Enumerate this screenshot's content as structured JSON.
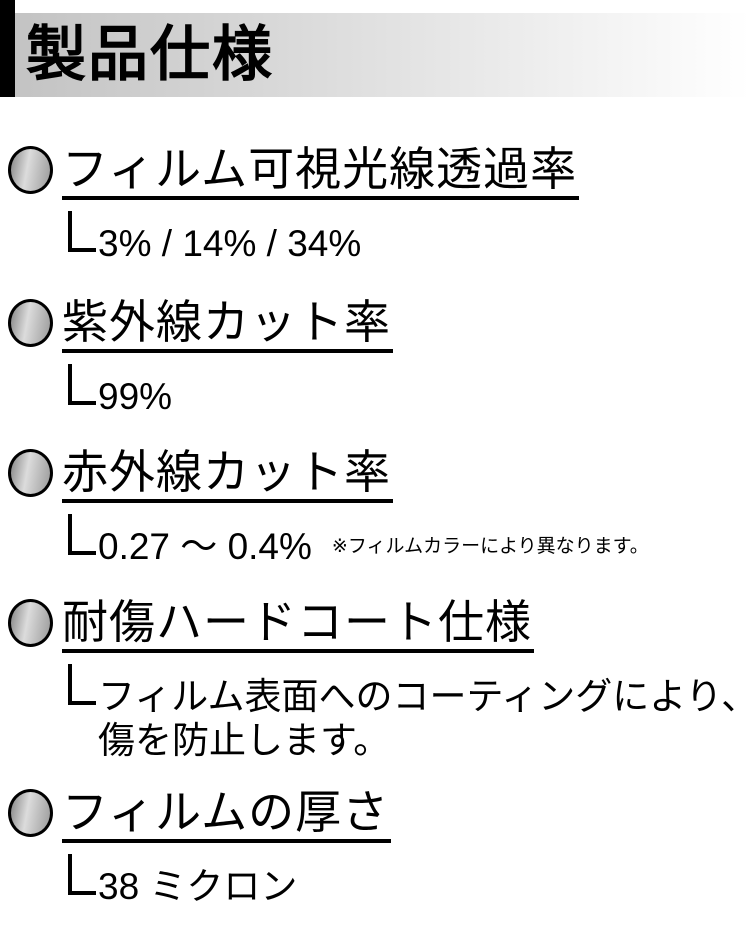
{
  "header": {
    "title": "製品仕様"
  },
  "icons": {
    "elbow_glyph": "└",
    "bullet_shape": "gradient-circle"
  },
  "colors": {
    "accent_bar": "#000000",
    "band_gradient_left": "#c2c2c2",
    "band_gradient_right": "#ffffff",
    "text": "#000000",
    "bullet_dark": "#848484",
    "bullet_light": "#dcdcdc"
  },
  "sections": [
    {
      "heading": "フィルム可視光線透過率",
      "value_lines": [
        "3% / 14% / 34%"
      ],
      "note": ""
    },
    {
      "heading": "紫外線カット率",
      "value_lines": [
        "99%"
      ],
      "note": ""
    },
    {
      "heading": "赤外線カット率",
      "value_lines": [
        "0.27 ～ 0.4%"
      ],
      "note": "※フィルムカラーにより異なります。"
    },
    {
      "heading": "耐傷ハードコート仕様",
      "value_lines": [
        "フィルム表面へのコーティングにより、",
        "傷を防止します。"
      ],
      "note": ""
    },
    {
      "heading": "フィルムの厚さ",
      "value_lines": [
        "38 ミクロン"
      ],
      "note": ""
    }
  ]
}
